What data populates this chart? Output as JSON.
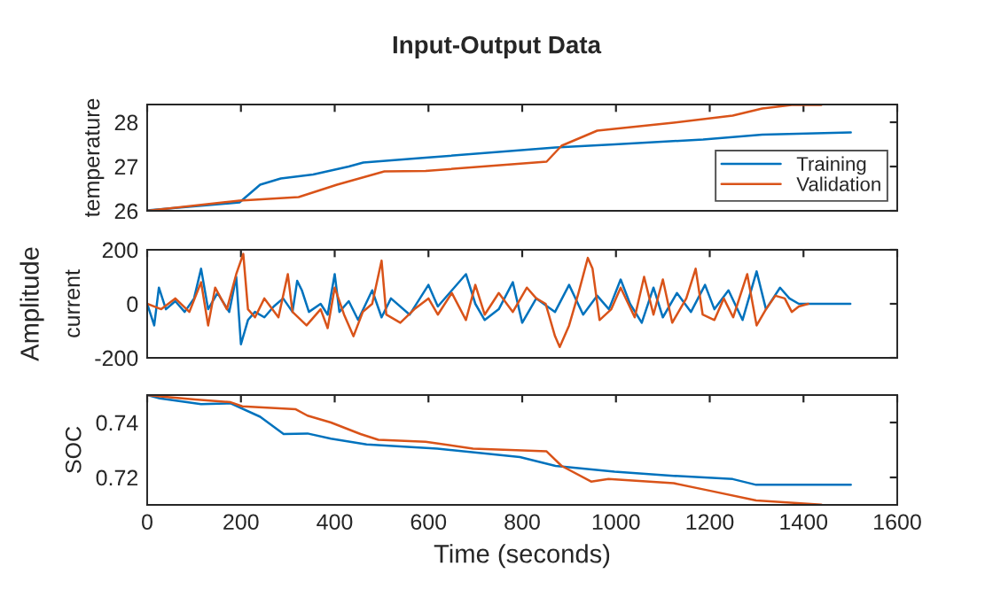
{
  "chart_data": [
    {
      "type": "line",
      "title": "Input-Output Data",
      "ylabel": "temperature",
      "xlim": [
        0,
        1600
      ],
      "xticks": [
        0,
        200,
        400,
        600,
        800,
        1000,
        1200,
        1400,
        1600
      ],
      "ylim": [
        26,
        28.4
      ],
      "yticks": [
        26,
        27,
        28
      ],
      "tick_labels": "y",
      "legend": "bottom right",
      "grid": false,
      "series": [
        {
          "name": "Training",
          "color": "#0072bd",
          "x": [
            0,
            197,
            241,
            285,
            354,
            430,
            461,
            594,
            871,
            997,
            1186,
            1312,
            1501
          ],
          "values": [
            26.01,
            26.19,
            26.59,
            26.73,
            26.82,
            27.0,
            27.09,
            27.2,
            27.43,
            27.5,
            27.61,
            27.72,
            27.77
          ]
        },
        {
          "name": "Validation",
          "color": "#d95319",
          "x": [
            0,
            197,
            323,
            405,
            506,
            594,
            852,
            884,
            960,
            1123,
            1249,
            1312,
            1375,
            1438
          ],
          "values": [
            26.0,
            26.23,
            26.31,
            26.59,
            26.89,
            26.9,
            27.11,
            27.47,
            27.81,
            27.99,
            28.15,
            28.31,
            28.39,
            28.39
          ]
        }
      ]
    },
    {
      "type": "line",
      "ylabel": "current",
      "annotations": [
        "Amplitude"
      ],
      "xlim": [
        0,
        1600
      ],
      "xticks": [
        0,
        200,
        400,
        600,
        800,
        1000,
        1200,
        1400,
        1600
      ],
      "ylim": [
        -200,
        200
      ],
      "yticks": [
        -200,
        0,
        200
      ],
      "tick_labels": "y",
      "grid": false,
      "series": [
        {
          "color": "#0072bd",
          "x": [
            0,
            15,
            25,
            40,
            60,
            80,
            100,
            115,
            130,
            150,
            175,
            190,
            200,
            215,
            230,
            250,
            270,
            290,
            310,
            320,
            330,
            345,
            370,
            385,
            400,
            410,
            430,
            450,
            480,
            500,
            520,
            560,
            600,
            620,
            650,
            680,
            700,
            720,
            750,
            780,
            800,
            830,
            870,
            900,
            930,
            960,
            985,
            1010,
            1030,
            1055,
            1080,
            1100,
            1130,
            1160,
            1190,
            1210,
            1240,
            1270,
            1300,
            1320,
            1350,
            1370,
            1390,
            1410,
            1500
          ],
          "values": [
            0,
            -80,
            60,
            -20,
            10,
            -30,
            20,
            130,
            -20,
            40,
            -30,
            100,
            -150,
            -60,
            -30,
            -50,
            -10,
            20,
            -30,
            85,
            50,
            -30,
            0,
            -40,
            110,
            -30,
            10,
            -60,
            50,
            -50,
            20,
            -40,
            70,
            -10,
            50,
            110,
            0,
            -60,
            -20,
            80,
            -70,
            20,
            -30,
            70,
            -40,
            30,
            -20,
            90,
            0,
            -70,
            60,
            -50,
            40,
            -30,
            70,
            -20,
            50,
            -60,
            120,
            -20,
            60,
            20,
            0,
            0,
            0
          ]
        },
        {
          "color": "#d95319",
          "x": [
            0,
            30,
            60,
            90,
            115,
            130,
            145,
            170,
            190,
            205,
            215,
            230,
            250,
            280,
            300,
            310,
            340,
            370,
            385,
            400,
            420,
            440,
            460,
            480,
            500,
            510,
            540,
            570,
            600,
            620,
            650,
            680,
            700,
            720,
            750,
            780,
            810,
            830,
            850,
            870,
            880,
            900,
            920,
            940,
            950,
            965,
            990,
            1010,
            1040,
            1060,
            1080,
            1100,
            1120,
            1150,
            1170,
            1185,
            1210,
            1230,
            1250,
            1280,
            1300,
            1320,
            1340,
            1360,
            1375,
            1390,
            1410
          ],
          "values": [
            0,
            -20,
            20,
            -30,
            80,
            -80,
            60,
            -20,
            110,
            185,
            -20,
            -50,
            20,
            -50,
            110,
            -30,
            -80,
            -20,
            -90,
            60,
            -40,
            -120,
            -30,
            0,
            160,
            -40,
            -70,
            -20,
            20,
            -40,
            40,
            -60,
            70,
            -40,
            40,
            -30,
            60,
            20,
            0,
            -120,
            -160,
            -80,
            40,
            170,
            130,
            -60,
            -20,
            60,
            -50,
            100,
            -40,
            90,
            -70,
            20,
            130,
            -40,
            -60,
            20,
            -50,
            110,
            -80,
            -20,
            30,
            20,
            -30,
            -10,
            0
          ]
        }
      ]
    },
    {
      "type": "line",
      "ylabel": "SOC",
      "xlabel": "Time (seconds)",
      "xlim": [
        0,
        1600
      ],
      "xticks": [
        0,
        200,
        400,
        600,
        800,
        1000,
        1200,
        1400,
        1600
      ],
      "ylim": [
        0.71,
        0.75
      ],
      "yticks": [
        0.72,
        0.74
      ],
      "grid": false,
      "series": [
        {
          "color": "#0072bd",
          "x": [
            0,
            27,
            115,
            178,
            241,
            291,
            342,
            392,
            468,
            619,
            795,
            871,
            997,
            1123,
            1249,
            1299,
            1350,
            1501
          ],
          "values": [
            0.75,
            0.7488,
            0.7467,
            0.747,
            0.7421,
            0.7358,
            0.736,
            0.7341,
            0.732,
            0.7305,
            0.7274,
            0.7242,
            0.7221,
            0.7206,
            0.7194,
            0.7173,
            0.7173,
            0.7173
          ]
        },
        {
          "color": "#d95319",
          "x": [
            0,
            27,
            102,
            178,
            203,
            317,
            342,
            392,
            455,
            493,
            594,
            695,
            852,
            884,
            947,
            984,
            1123,
            1199,
            1299,
            1438
          ],
          "values": [
            0.75,
            0.7495,
            0.7484,
            0.7474,
            0.7459,
            0.7448,
            0.7425,
            0.74,
            0.7358,
            0.7337,
            0.733,
            0.7305,
            0.7295,
            0.7242,
            0.7185,
            0.7194,
            0.7179,
            0.7152,
            0.7116,
            0.7101
          ]
        }
      ]
    }
  ]
}
